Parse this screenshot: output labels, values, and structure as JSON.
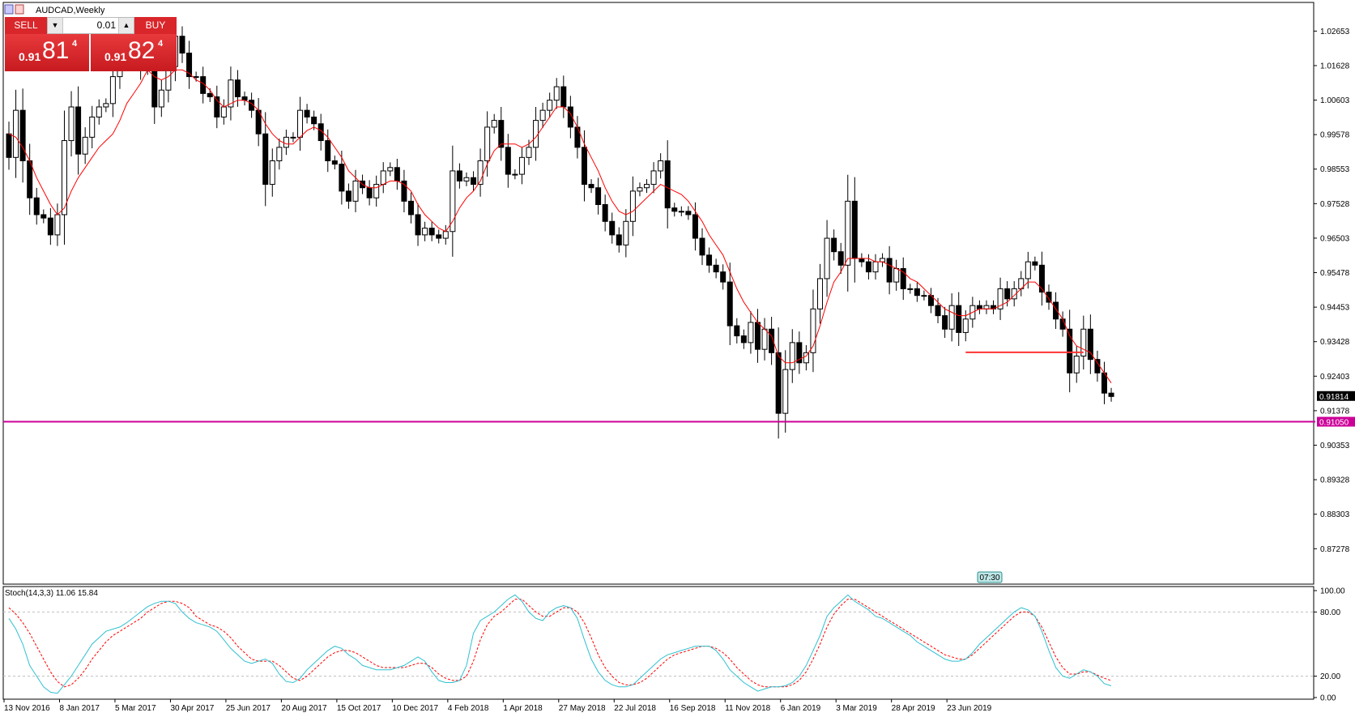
{
  "window": {
    "title": "AUDCAD,Weekly"
  },
  "trade_panel": {
    "sell_label": "SELL",
    "buy_label": "BUY",
    "lot": "0.01",
    "sell_price": {
      "prefix": "0.91",
      "big": "81",
      "sup": "4"
    },
    "buy_price": {
      "prefix": "0.91",
      "big": "82",
      "sup": "4"
    }
  },
  "time_badge": "07:30",
  "colors": {
    "bull_body": "#ffffff",
    "bear_body": "#000000",
    "wick": "#000000",
    "ma": "#ff0000",
    "level": "#cc0099",
    "stoch_main": "#30c0d0",
    "stoch_signal": "#ff0000",
    "price_tag_bg": "#000000",
    "level_tag_bg": "#cc0099"
  },
  "chart_data": {
    "type": "candlestick",
    "title": "AUDCAD,Weekly",
    "symbol": "AUDCAD",
    "timeframe": "Weekly",
    "y_ticks": [
      "1.02653",
      "1.01628",
      "1.00603",
      "0.99578",
      "0.98553",
      "0.97528",
      "0.96503",
      "0.95478",
      "0.94453",
      "0.93428",
      "0.92403",
      "0.91378",
      "0.90353",
      "0.89328",
      "0.88303",
      "0.87278"
    ],
    "ylim": [
      0.8625,
      1.0348
    ],
    "x_labels": [
      "13 Nov 2016",
      "8 Jan 2017",
      "5 Mar 2017",
      "30 Apr 2017",
      "25 Jun 2017",
      "20 Aug 2017",
      "15 Oct 2017",
      "10 Dec 2017",
      "4 Feb 2018",
      "1 Apr 2018",
      "27 May 2018",
      "22 Jul 2018",
      "16 Sep 2018",
      "11 Nov 2018",
      "6 Jan 2019",
      "3 Mar 2019",
      "28 Apr 2019",
      "23 Jun 2019"
    ],
    "candles_open_close": [
      [
        0.996,
        0.989
      ],
      [
        0.989,
        1.003
      ],
      [
        1.003,
        0.988
      ],
      [
        0.988,
        0.977
      ],
      [
        0.977,
        0.972
      ],
      [
        0.972,
        0.971
      ],
      [
        0.971,
        0.966
      ],
      [
        0.966,
        0.972
      ],
      [
        0.972,
        0.994
      ],
      [
        0.994,
        1.004
      ],
      [
        1.004,
        0.99
      ],
      [
        0.99,
        0.995
      ],
      [
        0.995,
        1.001
      ],
      [
        1.001,
        1.004
      ],
      [
        1.004,
        1.005
      ],
      [
        1.005,
        1.013
      ],
      [
        1.013,
        1.02
      ],
      [
        1.02,
        1.026
      ],
      [
        1.026,
        1.02
      ],
      [
        1.02,
        1.015
      ],
      [
        1.015,
        1.015
      ],
      [
        1.015,
        1.004
      ],
      [
        1.004,
        1.009
      ],
      [
        1.009,
        1.016
      ],
      [
        1.016,
        1.025
      ],
      [
        1.025,
        1.02
      ],
      [
        1.02,
        1.013
      ],
      [
        1.013,
        1.013
      ],
      [
        1.013,
        1.008
      ],
      [
        1.008,
        1.007
      ],
      [
        1.007,
        1.001
      ],
      [
        1.001,
        1.004
      ],
      [
        1.004,
        1.012
      ],
      [
        1.012,
        1.007
      ],
      [
        1.007,
        1.006
      ],
      [
        1.006,
        1.003
      ],
      [
        1.003,
        0.996
      ],
      [
        0.996,
        0.981
      ],
      [
        0.981,
        0.988
      ],
      [
        0.988,
        0.992
      ],
      [
        0.992,
        0.995
      ],
      [
        0.995,
        0.995
      ],
      [
        0.995,
        1.003
      ],
      [
        1.003,
        1.001
      ],
      [
        1.001,
        0.999
      ],
      [
        0.999,
        0.994
      ],
      [
        0.994,
        0.988
      ],
      [
        0.988,
        0.987
      ],
      [
        0.987,
        0.979
      ],
      [
        0.979,
        0.976
      ],
      [
        0.976,
        0.982
      ],
      [
        0.982,
        0.98
      ],
      [
        0.98,
        0.977
      ],
      [
        0.977,
        0.981
      ],
      [
        0.981,
        0.985
      ],
      [
        0.985,
        0.986
      ],
      [
        0.986,
        0.982
      ],
      [
        0.982,
        0.976
      ],
      [
        0.976,
        0.972
      ],
      [
        0.972,
        0.966
      ],
      [
        0.966,
        0.968
      ],
      [
        0.968,
        0.966
      ],
      [
        0.966,
        0.965
      ],
      [
        0.965,
        0.967
      ],
      [
        0.967,
        0.985
      ],
      [
        0.985,
        0.982
      ],
      [
        0.982,
        0.983
      ],
      [
        0.983,
        0.981
      ],
      [
        0.981,
        0.988
      ],
      [
        0.988,
        0.998
      ],
      [
        0.998,
        1.0
      ],
      [
        1.0,
        0.992
      ],
      [
        0.992,
        0.984
      ],
      [
        0.984,
        0.984
      ],
      [
        0.984,
        0.989
      ],
      [
        0.989,
        0.992
      ],
      [
        0.992,
        1.0
      ],
      [
        1.0,
        1.003
      ],
      [
        1.003,
        1.006
      ],
      [
        1.006,
        1.01
      ],
      [
        1.01,
        1.004
      ],
      [
        1.004,
        0.998
      ],
      [
        0.998,
        0.992
      ],
      [
        0.992,
        0.981
      ],
      [
        0.981,
        0.98
      ],
      [
        0.98,
        0.975
      ],
      [
        0.975,
        0.97
      ],
      [
        0.97,
        0.966
      ],
      [
        0.966,
        0.963
      ],
      [
        0.963,
        0.97
      ],
      [
        0.97,
        0.979
      ],
      [
        0.979,
        0.98
      ],
      [
        0.98,
        0.981
      ],
      [
        0.981,
        0.985
      ],
      [
        0.985,
        0.988
      ],
      [
        0.988,
        0.974
      ],
      [
        0.974,
        0.973
      ],
      [
        0.973,
        0.973
      ],
      [
        0.973,
        0.972
      ],
      [
        0.972,
        0.965
      ],
      [
        0.965,
        0.96
      ],
      [
        0.96,
        0.957
      ],
      [
        0.957,
        0.955
      ],
      [
        0.955,
        0.952
      ],
      [
        0.952,
        0.939
      ],
      [
        0.939,
        0.936
      ],
      [
        0.936,
        0.934
      ],
      [
        0.934,
        0.94
      ],
      [
        0.94,
        0.932
      ],
      [
        0.932,
        0.938
      ],
      [
        0.938,
        0.931
      ],
      [
        0.931,
        0.913
      ],
      [
        0.913,
        0.926
      ],
      [
        0.926,
        0.934
      ],
      [
        0.934,
        0.928
      ],
      [
        0.928,
        0.931
      ],
      [
        0.931,
        0.944
      ],
      [
        0.944,
        0.953
      ],
      [
        0.953,
        0.965
      ],
      [
        0.965,
        0.961
      ],
      [
        0.961,
        0.957
      ],
      [
        0.957,
        0.976
      ],
      [
        0.976,
        0.959
      ],
      [
        0.959,
        0.958
      ],
      [
        0.958,
        0.955
      ],
      [
        0.955,
        0.958
      ],
      [
        0.958,
        0.959
      ],
      [
        0.959,
        0.952
      ],
      [
        0.952,
        0.956
      ],
      [
        0.956,
        0.95
      ],
      [
        0.95,
        0.95
      ],
      [
        0.95,
        0.948
      ],
      [
        0.948,
        0.948
      ],
      [
        0.948,
        0.945
      ],
      [
        0.945,
        0.942
      ],
      [
        0.942,
        0.938
      ],
      [
        0.938,
        0.945
      ],
      [
        0.945,
        0.937
      ],
      [
        0.937,
        0.941
      ],
      [
        0.941,
        0.945
      ],
      [
        0.945,
        0.944
      ],
      [
        0.944,
        0.945
      ],
      [
        0.945,
        0.944
      ],
      [
        0.944,
        0.95
      ],
      [
        0.95,
        0.947
      ],
      [
        0.947,
        0.95
      ],
      [
        0.95,
        0.953
      ],
      [
        0.953,
        0.958
      ],
      [
        0.958,
        0.957
      ],
      [
        0.957,
        0.949
      ],
      [
        0.949,
        0.946
      ],
      [
        0.946,
        0.941
      ],
      [
        0.941,
        0.938
      ],
      [
        0.938,
        0.925
      ],
      [
        0.925,
        0.93
      ],
      [
        0.93,
        0.938
      ],
      [
        0.938,
        0.929
      ],
      [
        0.929,
        0.925
      ],
      [
        0.925,
        0.919
      ],
      [
        0.919,
        0.918
      ]
    ],
    "moving_average": {
      "label": "",
      "values": [
        0.996,
        0.995,
        0.992,
        0.988,
        0.983,
        0.979,
        0.975,
        0.972,
        0.974,
        0.979,
        0.983,
        0.986,
        0.989,
        0.992,
        0.994,
        0.996,
        1.0,
        1.005,
        1.008,
        1.011,
        1.015,
        1.013,
        1.012,
        1.013,
        1.015,
        1.015,
        1.014,
        1.012,
        1.011,
        1.009,
        1.006,
        1.004,
        1.005,
        1.006,
        1.006,
        1.005,
        1.003,
        0.999,
        0.996,
        0.994,
        0.993,
        0.993,
        0.995,
        0.997,
        0.998,
        0.997,
        0.995,
        0.992,
        0.989,
        0.985,
        0.983,
        0.981,
        0.98,
        0.98,
        0.981,
        0.982,
        0.982,
        0.981,
        0.979,
        0.975,
        0.972,
        0.97,
        0.968,
        0.967,
        0.97,
        0.974,
        0.977,
        0.979,
        0.982,
        0.987,
        0.991,
        0.993,
        0.993,
        0.993,
        0.992,
        0.993,
        0.995,
        0.998,
        1.001,
        1.004,
        1.004,
        1.002,
        0.998,
        0.993,
        0.989,
        0.985,
        0.98,
        0.976,
        0.973,
        0.972,
        0.973,
        0.975,
        0.977,
        0.979,
        0.981,
        0.98,
        0.979,
        0.978,
        0.976,
        0.973,
        0.97,
        0.966,
        0.963,
        0.96,
        0.955,
        0.95,
        0.946,
        0.943,
        0.94,
        0.938,
        0.936,
        0.93,
        0.928,
        0.928,
        0.929,
        0.93,
        0.933,
        0.939,
        0.946,
        0.952,
        0.955,
        0.959,
        0.959,
        0.959,
        0.959,
        0.958,
        0.958,
        0.957,
        0.956,
        0.955,
        0.953,
        0.952,
        0.95,
        0.948,
        0.946,
        0.944,
        0.943,
        0.942,
        0.942,
        0.943,
        0.944,
        0.944,
        0.944,
        0.945,
        0.946,
        0.948,
        0.95,
        0.952,
        0.952,
        0.95,
        0.947,
        0.944,
        0.941,
        0.936,
        0.933,
        0.932,
        0.931,
        0.928,
        0.925,
        0.922
      ]
    },
    "horizontal_lines": [
      {
        "value": 0.9105,
        "label": "0.91050"
      },
      {
        "value": 0.9311,
        "label": ""
      }
    ],
    "current_price": {
      "value": 0.91814,
      "label": "0.91814"
    },
    "indicator": {
      "name": "Stoch(14,3,3) 11.06 15.84",
      "y_ticks": [
        "100.00",
        "80.00",
        "20.00",
        "0.00"
      ],
      "levels": [
        80,
        20
      ],
      "ylim": [
        0,
        100
      ],
      "main": [
        74,
        64,
        50,
        30,
        20,
        10,
        5,
        4,
        12,
        20,
        30,
        40,
        50,
        56,
        62,
        64,
        66,
        70,
        75,
        80,
        85,
        88,
        90,
        90,
        88,
        80,
        74,
        70,
        68,
        66,
        62,
        54,
        46,
        40,
        34,
        32,
        34,
        36,
        32,
        22,
        15,
        14,
        18,
        26,
        32,
        38,
        44,
        48,
        46,
        40,
        36,
        30,
        28,
        26,
        26,
        26,
        28,
        30,
        34,
        38,
        34,
        24,
        16,
        14,
        14,
        16,
        30,
        60,
        72,
        76,
        80,
        86,
        92,
        96,
        90,
        80,
        74,
        72,
        80,
        84,
        86,
        84,
        74,
        54,
        36,
        24,
        16,
        12,
        10,
        10,
        12,
        18,
        24,
        30,
        36,
        40,
        42,
        44,
        46,
        48,
        48,
        48,
        44,
        36,
        26,
        20,
        14,
        10,
        6,
        8,
        10,
        10,
        11,
        14,
        20,
        30,
        44,
        58,
        76,
        84,
        90,
        96,
        90,
        86,
        82,
        76,
        74,
        70,
        66,
        62,
        58,
        52,
        48,
        44,
        40,
        36,
        34,
        34,
        36,
        42,
        50,
        56,
        62,
        68,
        74,
        80,
        84,
        82,
        76,
        62,
        44,
        28,
        20,
        18,
        22,
        26,
        24,
        20,
        13,
        11
      ],
      "signal": [
        84,
        78,
        70,
        60,
        48,
        36,
        24,
        15,
        10,
        12,
        18,
        26,
        36,
        44,
        52,
        58,
        62,
        66,
        70,
        74,
        80,
        84,
        88,
        90,
        90,
        88,
        84,
        76,
        72,
        68,
        66,
        62,
        56,
        48,
        42,
        36,
        34,
        34,
        34,
        30,
        24,
        18,
        16,
        20,
        26,
        32,
        38,
        42,
        44,
        44,
        42,
        38,
        34,
        30,
        28,
        28,
        28,
        28,
        30,
        32,
        32,
        28,
        22,
        18,
        16,
        16,
        20,
        34,
        54,
        68,
        76,
        80,
        86,
        92,
        92,
        86,
        80,
        76,
        76,
        80,
        84,
        84,
        80,
        70,
        56,
        40,
        28,
        20,
        14,
        12,
        12,
        14,
        18,
        24,
        30,
        36,
        40,
        42,
        44,
        46,
        48,
        48,
        46,
        42,
        36,
        28,
        22,
        16,
        12,
        10,
        10,
        10,
        10,
        12,
        16,
        24,
        36,
        50,
        66,
        78,
        86,
        92,
        92,
        88,
        84,
        80,
        76,
        72,
        68,
        64,
        60,
        56,
        52,
        48,
        44,
        40,
        38,
        36,
        36,
        40,
        46,
        52,
        58,
        64,
        70,
        76,
        80,
        80,
        76,
        66,
        52,
        38,
        28,
        22,
        22,
        24,
        24,
        21,
        18,
        16
      ]
    }
  }
}
